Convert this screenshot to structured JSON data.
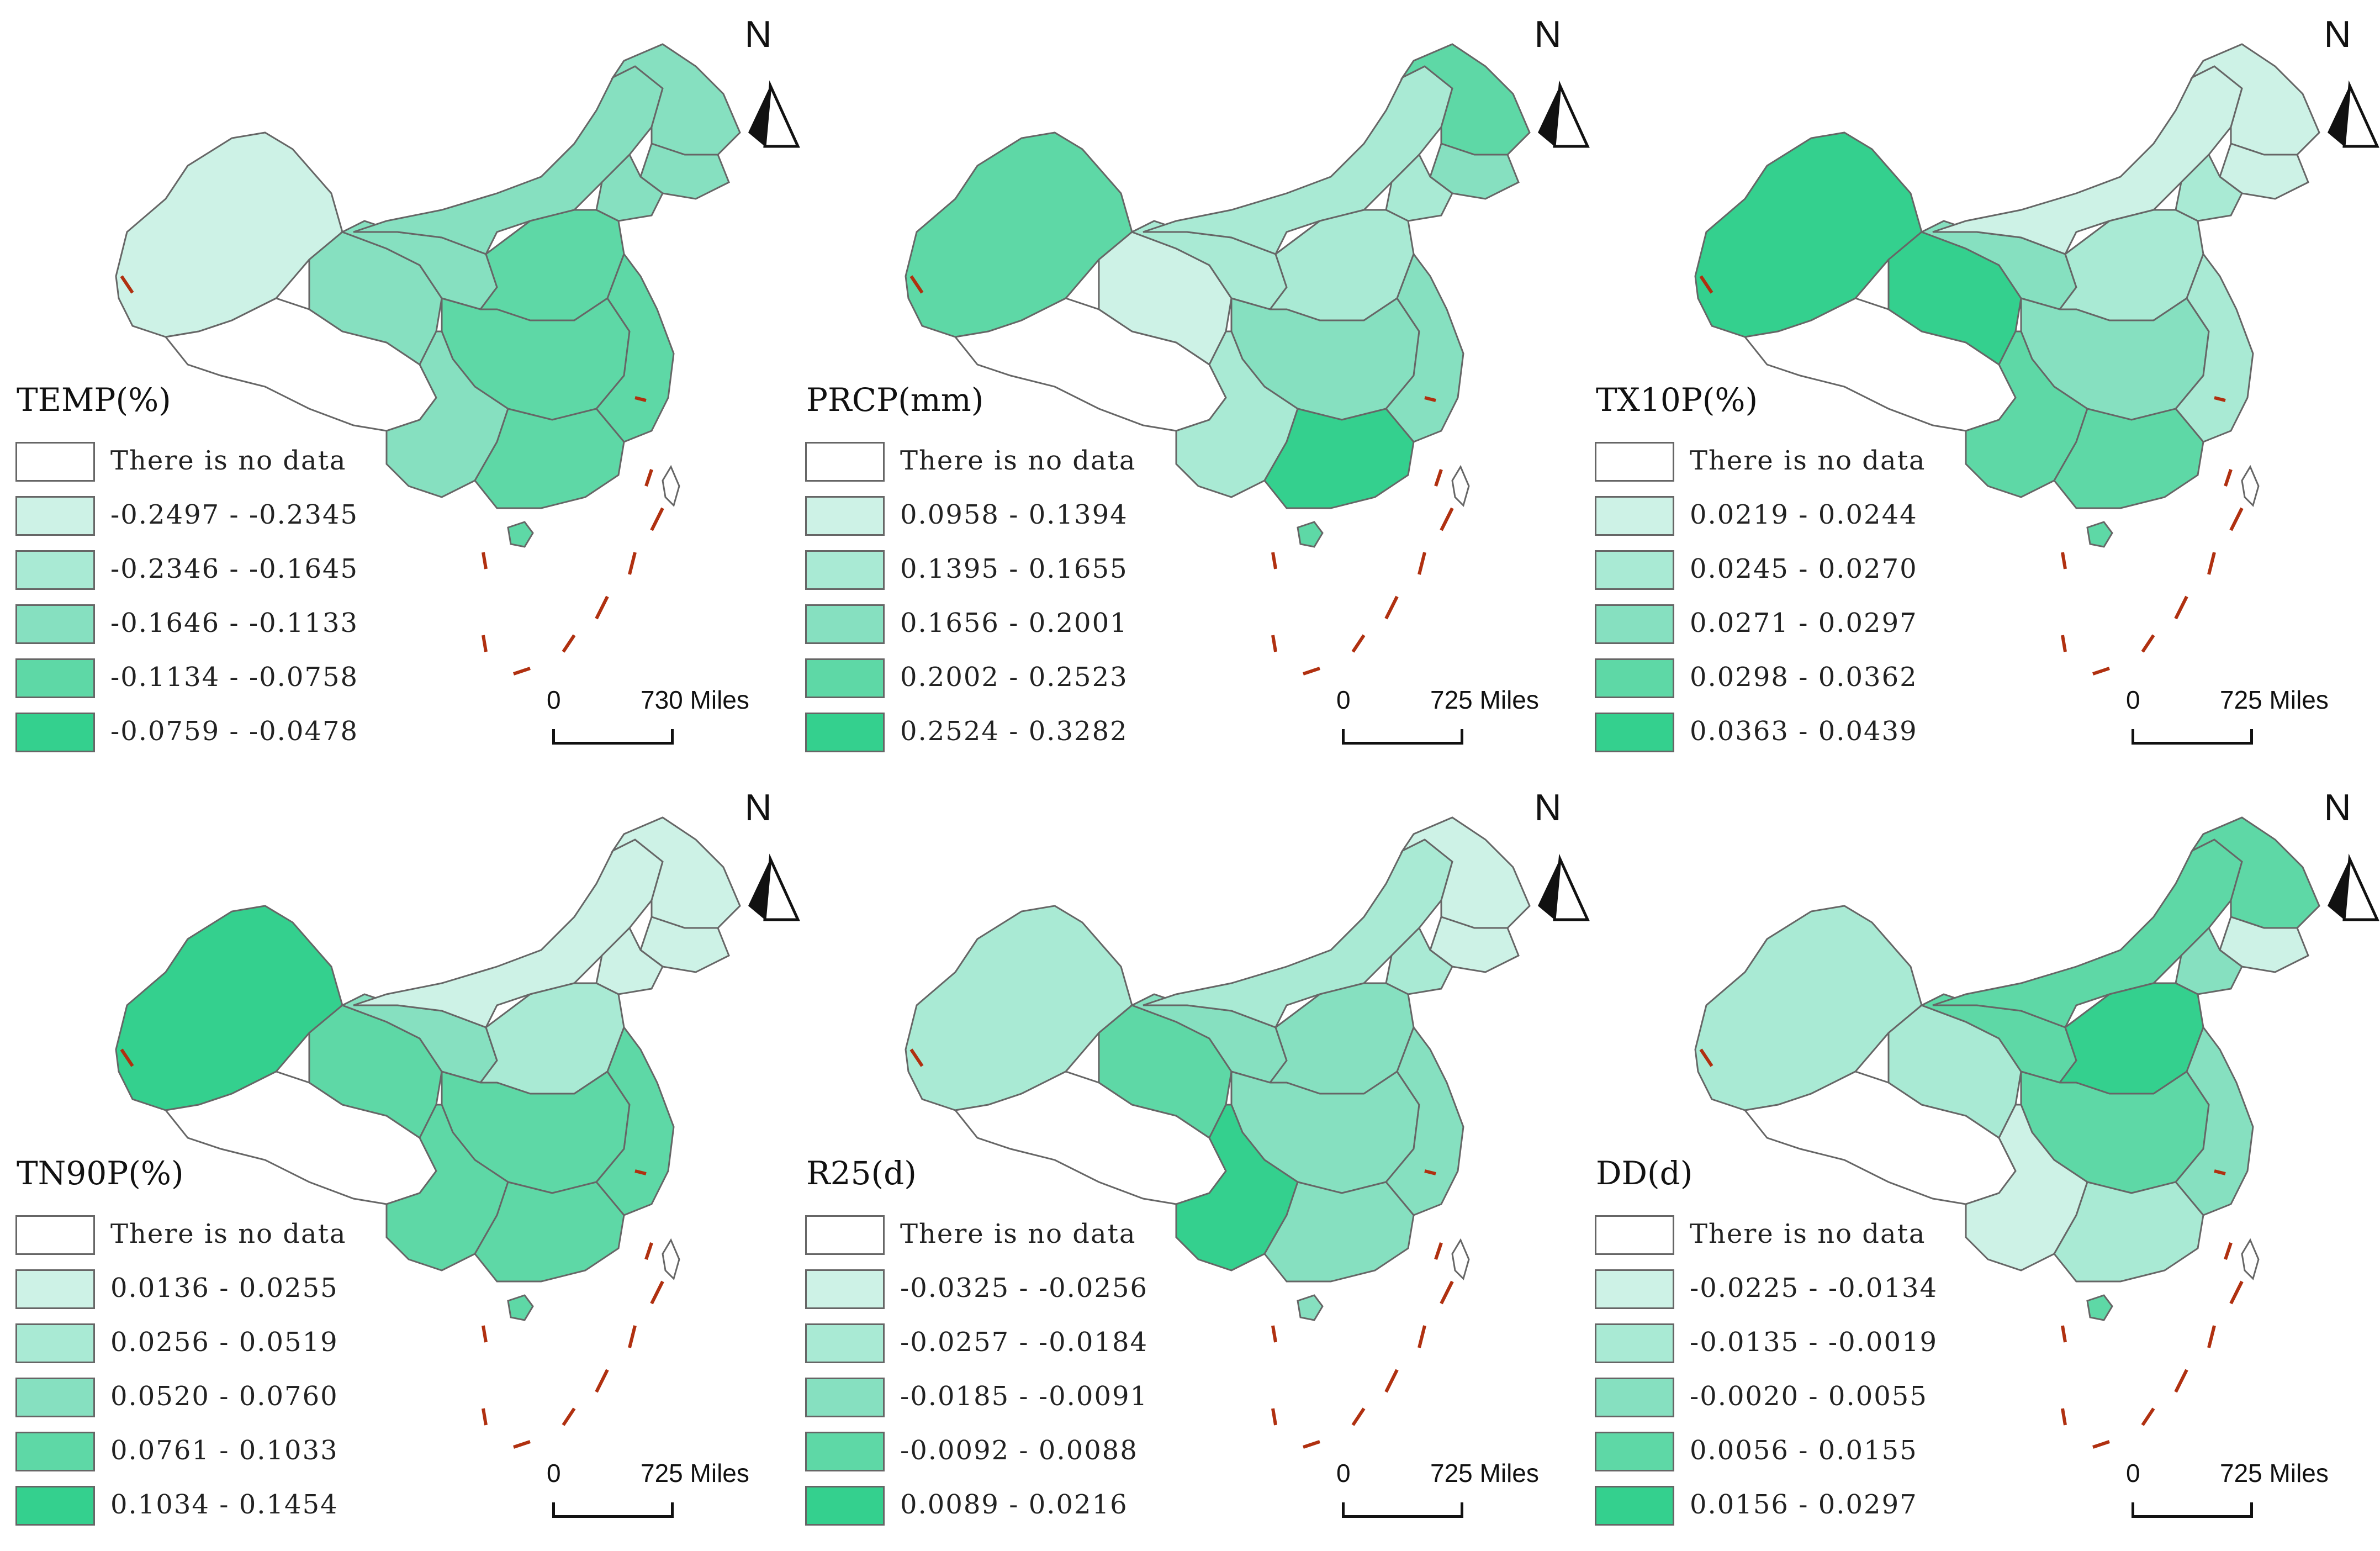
{
  "palette": {
    "no_data": "#ffffff",
    "border": "#666666",
    "ten_dash": "#b03010",
    "classes": [
      "#cdf2e6",
      "#a9ead4",
      "#86e0c0",
      "#5ed8a6",
      "#34d08e"
    ]
  },
  "north_label": "N",
  "legend_no_data": "There is no data",
  "panels": [
    {
      "title": "TEMP(%)",
      "classes": [
        "-0.2497 - -0.2345",
        "-0.2346 - -0.1645",
        "-0.1646 - -0.1133",
        "-0.1134 - -0.0758",
        "-0.0759 - -0.0478"
      ],
      "scale": {
        "zero": "0",
        "distance": "730 Miles"
      },
      "region_classes": {
        "xinjiang": 1,
        "tibet": 0,
        "qinghai": 3,
        "gansu": 3,
        "inner_mongolia": 3,
        "heilongjiang": 3,
        "jilin": 3,
        "liaoning": 3,
        "north": 4,
        "central": 4,
        "east": 4,
        "southwest": 3,
        "south": 4,
        "hainan": 4,
        "taiwan": 0
      }
    },
    {
      "title": "PRCP(mm)",
      "classes": [
        "0.0958 - 0.1394",
        "0.1395 - 0.1655",
        "0.1656 - 0.2001",
        "0.2002 - 0.2523",
        "0.2524 - 0.3282"
      ],
      "scale": {
        "zero": "0",
        "distance": "725 Miles"
      },
      "region_classes": {
        "xinjiang": 4,
        "tibet": 0,
        "qinghai": 1,
        "gansu": 2,
        "inner_mongolia": 2,
        "heilongjiang": 4,
        "jilin": 3,
        "liaoning": 2,
        "north": 2,
        "central": 3,
        "east": 3,
        "southwest": 2,
        "south": 5,
        "hainan": 4,
        "taiwan": 0
      }
    },
    {
      "title": "TX10P(%)",
      "classes": [
        "0.0219 - 0.0244",
        "0.0245 - 0.0270",
        "0.0271 - 0.0297",
        "0.0298 - 0.0362",
        "0.0363 - 0.0439"
      ],
      "scale": {
        "zero": "0",
        "distance": "725 Miles"
      },
      "region_classes": {
        "xinjiang": 5,
        "tibet": 0,
        "qinghai": 5,
        "gansu": 3,
        "inner_mongolia": 1,
        "heilongjiang": 1,
        "jilin": 1,
        "liaoning": 2,
        "north": 2,
        "central": 3,
        "east": 2,
        "southwest": 4,
        "south": 4,
        "hainan": 4,
        "taiwan": 0
      }
    },
    {
      "title": "TN90P(%)",
      "classes": [
        "0.0136 - 0.0255",
        "0.0256 - 0.0519",
        "0.0520 - 0.0760",
        "0.0761 - 0.1033",
        "0.1034 - 0.1454"
      ],
      "scale": {
        "zero": "0",
        "distance": "725 Miles"
      },
      "region_classes": {
        "xinjiang": 5,
        "tibet": 0,
        "qinghai": 4,
        "gansu": 3,
        "inner_mongolia": 1,
        "heilongjiang": 1,
        "jilin": 1,
        "liaoning": 1,
        "north": 2,
        "central": 4,
        "east": 4,
        "southwest": 4,
        "south": 4,
        "hainan": 4,
        "taiwan": 0
      }
    },
    {
      "title": "R25(d)",
      "classes": [
        "-0.0325 - -0.0256",
        "-0.0257 - -0.0184",
        "-0.0185 - -0.0091",
        "-0.0092 - 0.0088",
        "0.0089 - 0.0216"
      ],
      "scale": {
        "zero": "0",
        "distance": "725 Miles"
      },
      "region_classes": {
        "xinjiang": 2,
        "tibet": 0,
        "qinghai": 4,
        "gansu": 3,
        "inner_mongolia": 2,
        "heilongjiang": 1,
        "jilin": 1,
        "liaoning": 2,
        "north": 3,
        "central": 3,
        "east": 3,
        "southwest": 5,
        "south": 3,
        "hainan": 3,
        "taiwan": 0
      }
    },
    {
      "title": "DD(d)",
      "classes": [
        "-0.0225 - -0.0134",
        "-0.0135 - -0.0019",
        "-0.0020 - 0.0055",
        "0.0056 - 0.0155",
        "0.0156 - 0.0297"
      ],
      "scale": {
        "zero": "0",
        "distance": "725 Miles"
      },
      "region_classes": {
        "xinjiang": 2,
        "tibet": 0,
        "qinghai": 2,
        "gansu": 4,
        "inner_mongolia": 4,
        "heilongjiang": 4,
        "jilin": 1,
        "liaoning": 3,
        "north": 5,
        "central": 4,
        "east": 3,
        "southwest": 1,
        "south": 2,
        "hainan": 4,
        "taiwan": 0
      }
    }
  ]
}
